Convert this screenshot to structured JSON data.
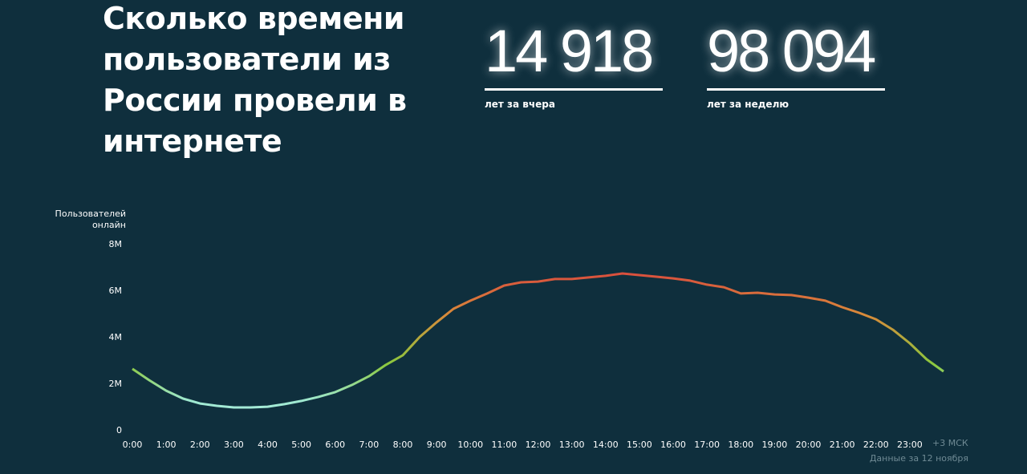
{
  "header": {
    "title": "Сколько времени пользователи из России провели в интернете",
    "stats": [
      {
        "value": 14918,
        "label": "14 918",
        "caption": "лет за вчера"
      },
      {
        "value": 98094,
        "label": "98 094",
        "caption": "лет за неделю"
      }
    ]
  },
  "chart_data": {
    "type": "line",
    "y_label": "Пользователей онлайн",
    "x_annotation": "+3 МСК",
    "note": "Данные за 12 ноября",
    "x": [
      0,
      0.5,
      1,
      1.5,
      2,
      2.5,
      3,
      3.5,
      4,
      4.5,
      5,
      5.5,
      6,
      6.5,
      7,
      7.5,
      8,
      8.5,
      9,
      9.5,
      10,
      10.5,
      11,
      11.5,
      12,
      12.5,
      13,
      13.5,
      14,
      14.5,
      15,
      15.5,
      16,
      16.5,
      17,
      17.5,
      18,
      18.5,
      19,
      19.5,
      20,
      20.5,
      21,
      21.5,
      22,
      22.5,
      23,
      23.5,
      24
    ],
    "values": [
      2660000,
      2170000,
      1720000,
      1380000,
      1170000,
      1070000,
      1000000,
      1000000,
      1030000,
      1140000,
      1280000,
      1450000,
      1660000,
      1970000,
      2340000,
      2830000,
      3240000,
      4030000,
      4660000,
      5240000,
      5590000,
      5900000,
      6240000,
      6380000,
      6410000,
      6520000,
      6520000,
      6590000,
      6660000,
      6760000,
      6690000,
      6620000,
      6550000,
      6450000,
      6280000,
      6170000,
      5900000,
      5930000,
      5860000,
      5830000,
      5720000,
      5590000,
      5310000,
      5070000,
      4790000,
      4340000,
      3760000,
      3070000,
      2550000
    ],
    "xlim": [
      0,
      24
    ],
    "xticks": [
      {
        "value": 0,
        "label": "0:00"
      },
      {
        "value": 1,
        "label": "1:00"
      },
      {
        "value": 2,
        "label": "2:00"
      },
      {
        "value": 3,
        "label": "3:00"
      },
      {
        "value": 4,
        "label": "4:00"
      },
      {
        "value": 5,
        "label": "5:00"
      },
      {
        "value": 6,
        "label": "6:00"
      },
      {
        "value": 7,
        "label": "7:00"
      },
      {
        "value": 8,
        "label": "8:00"
      },
      {
        "value": 9,
        "label": "9:00"
      },
      {
        "value": 10,
        "label": "10:00"
      },
      {
        "value": 11,
        "label": "11:00"
      },
      {
        "value": 12,
        "label": "12:00"
      },
      {
        "value": 13,
        "label": "13:00"
      },
      {
        "value": 14,
        "label": "14:00"
      },
      {
        "value": 15,
        "label": "15:00"
      },
      {
        "value": 16,
        "label": "16:00"
      },
      {
        "value": 17,
        "label": "17:00"
      },
      {
        "value": 18,
        "label": "18:00"
      },
      {
        "value": 19,
        "label": "19:00"
      },
      {
        "value": 20,
        "label": "20:00"
      },
      {
        "value": 21,
        "label": "21:00"
      },
      {
        "value": 22,
        "label": "22:00"
      },
      {
        "value": 23,
        "label": "23:00"
      }
    ],
    "ylim": [
      0,
      8000000
    ],
    "yticks": [
      0,
      {
        "value": 2000000,
        "label": "2M"
      },
      {
        "value": 4000000,
        "label": "4M"
      },
      {
        "value": 6000000,
        "label": "6M"
      },
      {
        "value": 8000000,
        "label": "8M"
      }
    ],
    "grid": false
  }
}
